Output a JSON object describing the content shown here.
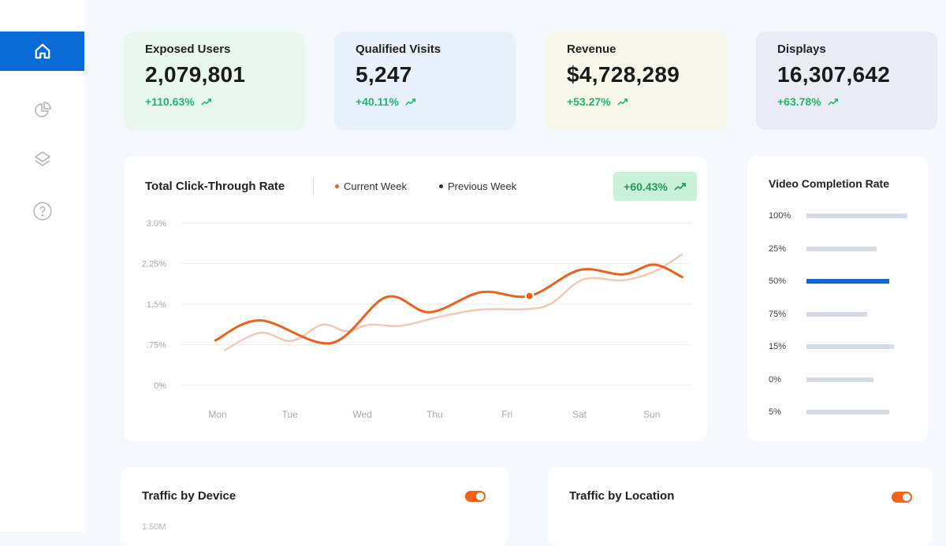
{
  "sidebar": {
    "items": [
      {
        "icon": "home-icon",
        "active": true
      },
      {
        "icon": "pie-chart-icon"
      },
      {
        "icon": "layers-icon"
      },
      {
        "icon": "help-icon"
      }
    ]
  },
  "kpis": [
    {
      "label": "Exposed Users",
      "value": "2,079,801",
      "change": "+110.63%",
      "bg": "#e9f8ef"
    },
    {
      "label": "Qualified Visits",
      "value": "5,247",
      "change": "+40.11%",
      "bg": "#e6f1fc"
    },
    {
      "label": "Revenue",
      "value": "$4,728,289",
      "change": "+53.27%",
      "bg": "#f8f8ea"
    },
    {
      "label": "Displays",
      "value": "16,307,642",
      "change": "+63.78%",
      "bg": "#e9ecf5"
    }
  ],
  "ctr": {
    "title": "Total Click-Through Rate",
    "legend_current": "Current Week",
    "legend_previous": "Previous Week",
    "badge": "+60.43%"
  },
  "chart_data": {
    "type": "line",
    "title": "Total Click-Through Rate",
    "categories": [
      "Mon",
      "Tue",
      "Wed",
      "Thu",
      "Fri",
      "Sat",
      "Sun"
    ],
    "yticks": [
      "3.0%",
      "2.25%",
      "1.5%",
      ".75%",
      "0%"
    ],
    "ylim": [
      0,
      3
    ],
    "series": [
      {
        "name": "Current Week",
        "color": "#f0601c",
        "points": [
          [
            -0.03,
            0.83
          ],
          [
            0.59,
            1.2
          ],
          [
            1.57,
            0.78
          ],
          [
            2.33,
            1.63
          ],
          [
            2.93,
            1.35
          ],
          [
            3.64,
            1.72
          ],
          [
            4.31,
            1.65
          ],
          [
            5.0,
            2.13
          ],
          [
            5.6,
            2.05
          ],
          [
            6.03,
            2.23
          ],
          [
            6.42,
            2.0
          ]
        ],
        "marker": [
          4.31,
          1.65
        ]
      },
      {
        "name": "Previous Week",
        "color": "#f5c7b4",
        "points": [
          [
            0.1,
            0.65
          ],
          [
            0.59,
            0.97
          ],
          [
            1.02,
            0.82
          ],
          [
            1.45,
            1.12
          ],
          [
            1.78,
            1.0
          ],
          [
            2.1,
            1.12
          ],
          [
            2.54,
            1.1
          ],
          [
            3.08,
            1.27
          ],
          [
            3.64,
            1.4
          ],
          [
            4.3,
            1.41
          ],
          [
            4.62,
            1.52
          ],
          [
            5.06,
            1.96
          ],
          [
            5.6,
            1.94
          ],
          [
            6.03,
            2.1
          ],
          [
            6.42,
            2.42
          ]
        ]
      }
    ]
  },
  "video": {
    "title": "Video Completion Rate",
    "rows": [
      {
        "label": "100%",
        "value": 0.98
      },
      {
        "label": "25%",
        "value": 0.68
      },
      {
        "label": "50%",
        "value": 0.8,
        "highlight": true
      },
      {
        "label": "75%",
        "value": 0.59
      },
      {
        "label": "15%",
        "value": 0.85
      },
      {
        "label": "0%",
        "value": 0.65
      },
      {
        "label": "5%",
        "value": 0.8
      }
    ]
  },
  "device": {
    "title": "Traffic by Device",
    "ytick": "1.50M"
  },
  "location": {
    "title": "Traffic by Location"
  }
}
